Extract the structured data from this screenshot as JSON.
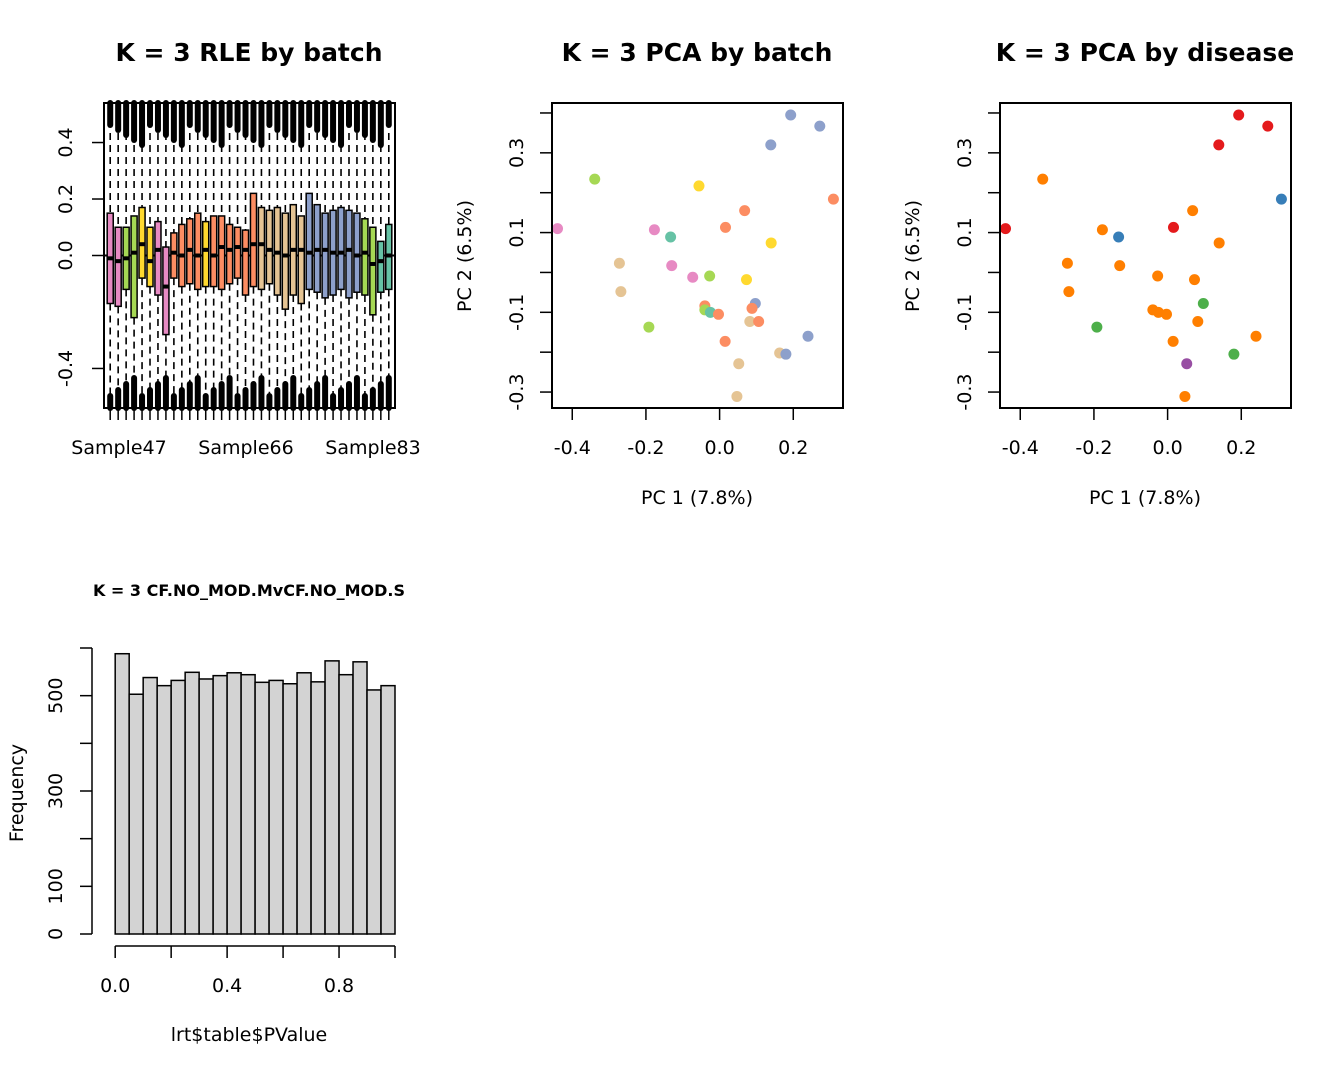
{
  "chart_data": [
    {
      "type": "boxplot",
      "title": "K = 3 RLE by batch",
      "xlabel": "",
      "ylabel": "",
      "ylim": [
        -0.54,
        0.54
      ],
      "yticks": [
        -0.4,
        0.0,
        0.2,
        0.4
      ],
      "ytick_labels": [
        "-0.4",
        "0.0",
        "0.2",
        "0.4"
      ],
      "xtick_labels": [
        "Sample47",
        "Sample66",
        "Sample83"
      ],
      "reference_line": 0,
      "boxes": [
        {
          "q1": -0.17,
          "median": -0.01,
          "q3": 0.15,
          "color": "#e78ac3"
        },
        {
          "q1": -0.18,
          "median": -0.02,
          "q3": 0.1,
          "color": "#e78ac3"
        },
        {
          "q1": -0.12,
          "median": -0.01,
          "q3": 0.1,
          "color": "#a6d854"
        },
        {
          "q1": -0.22,
          "median": 0.01,
          "q3": 0.14,
          "color": "#a6d854"
        },
        {
          "q1": -0.08,
          "median": 0.04,
          "q3": 0.17,
          "color": "#ffd92f"
        },
        {
          "q1": -0.11,
          "median": -0.02,
          "q3": 0.1,
          "color": "#ffd92f"
        },
        {
          "q1": -0.14,
          "median": 0.02,
          "q3": 0.12,
          "color": "#e78ac3"
        },
        {
          "q1": -0.28,
          "median": -0.11,
          "q3": 0.03,
          "color": "#e78ac3"
        },
        {
          "q1": -0.08,
          "median": 0.01,
          "q3": 0.08,
          "color": "#fc8d62"
        },
        {
          "q1": -0.11,
          "median": 0.0,
          "q3": 0.11,
          "color": "#fc8d62"
        },
        {
          "q1": -0.1,
          "median": 0.02,
          "q3": 0.13,
          "color": "#fc8d62"
        },
        {
          "q1": -0.12,
          "median": 0.0,
          "q3": 0.15,
          "color": "#fc8d62"
        },
        {
          "q1": -0.11,
          "median": 0.02,
          "q3": 0.12,
          "color": "#ffd92f"
        },
        {
          "q1": -0.11,
          "median": 0.0,
          "q3": 0.14,
          "color": "#fc8d62"
        },
        {
          "q1": -0.12,
          "median": 0.03,
          "q3": 0.14,
          "color": "#fc8d62"
        },
        {
          "q1": -0.1,
          "median": 0.02,
          "q3": 0.11,
          "color": "#fc8d62"
        },
        {
          "q1": -0.08,
          "median": 0.03,
          "q3": 0.1,
          "color": "#fc8d62"
        },
        {
          "q1": -0.14,
          "median": 0.02,
          "q3": 0.09,
          "color": "#fc8d62"
        },
        {
          "q1": -0.11,
          "median": 0.04,
          "q3": 0.22,
          "color": "#fc8d62"
        },
        {
          "q1": -0.12,
          "median": 0.04,
          "q3": 0.17,
          "color": "#e5c494"
        },
        {
          "q1": -0.1,
          "median": 0.02,
          "q3": 0.16,
          "color": "#e5c494"
        },
        {
          "q1": -0.14,
          "median": 0.01,
          "q3": 0.17,
          "color": "#e5c494"
        },
        {
          "q1": -0.19,
          "median": 0.0,
          "q3": 0.15,
          "color": "#e5c494"
        },
        {
          "q1": -0.14,
          "median": 0.02,
          "q3": 0.18,
          "color": "#e5c494"
        },
        {
          "q1": -0.17,
          "median": 0.02,
          "q3": 0.14,
          "color": "#e5c494"
        },
        {
          "q1": -0.12,
          "median": 0.01,
          "q3": 0.22,
          "color": "#8da0cb"
        },
        {
          "q1": -0.13,
          "median": 0.02,
          "q3": 0.18,
          "color": "#8da0cb"
        },
        {
          "q1": -0.15,
          "median": 0.02,
          "q3": 0.15,
          "color": "#8da0cb"
        },
        {
          "q1": -0.14,
          "median": 0.01,
          "q3": 0.16,
          "color": "#8da0cb"
        },
        {
          "q1": -0.12,
          "median": 0.01,
          "q3": 0.17,
          "color": "#8da0cb"
        },
        {
          "q1": -0.15,
          "median": 0.02,
          "q3": 0.16,
          "color": "#8da0cb"
        },
        {
          "q1": -0.13,
          "median": 0.0,
          "q3": 0.15,
          "color": "#8da0cb"
        },
        {
          "q1": -0.14,
          "median": 0.01,
          "q3": 0.13,
          "color": "#a6d854"
        },
        {
          "q1": -0.21,
          "median": -0.03,
          "q3": 0.1,
          "color": "#a6d854"
        },
        {
          "q1": -0.13,
          "median": -0.02,
          "q3": 0.05,
          "color": "#66c2a5"
        },
        {
          "q1": -0.12,
          "median": 0.0,
          "q3": 0.11,
          "color": "#66c2a5"
        }
      ]
    },
    {
      "type": "scatter",
      "title": "K = 3 PCA by batch",
      "xlabel": "PC 1 (7.8%)",
      "ylabel": "PC 2 (6.5%)",
      "xlim": [
        -0.455,
        0.335
      ],
      "ylim": [
        -0.34,
        0.425
      ],
      "xticks": [
        -0.4,
        -0.2,
        0.0,
        0.2
      ],
      "xtick_labels": [
        "-0.4",
        "-0.2",
        "0.0",
        "0.2"
      ],
      "yticks": [
        -0.3,
        -0.2,
        -0.1,
        0.0,
        0.1,
        0.2,
        0.3,
        0.4
      ],
      "ytick_labels": [
        "-0.3",
        "",
        "-0.1",
        "",
        "0.1",
        "",
        "0.3",
        ""
      ],
      "points": [
        {
          "x": 0.193,
          "y": 0.395,
          "color": "#8da0cb"
        },
        {
          "x": 0.272,
          "y": 0.367,
          "color": "#8da0cb"
        },
        {
          "x": 0.139,
          "y": 0.32,
          "color": "#8da0cb"
        },
        {
          "x": -0.339,
          "y": 0.234,
          "color": "#a6d854"
        },
        {
          "x": -0.056,
          "y": 0.217,
          "color": "#ffd92f"
        },
        {
          "x": 0.309,
          "y": 0.184,
          "color": "#fc8d62"
        },
        {
          "x": 0.068,
          "y": 0.155,
          "color": "#fc8d62"
        },
        {
          "x": 0.016,
          "y": 0.113,
          "color": "#fc8d62"
        },
        {
          "x": -0.44,
          "y": 0.11,
          "color": "#e78ac3"
        },
        {
          "x": -0.177,
          "y": 0.107,
          "color": "#e78ac3"
        },
        {
          "x": -0.133,
          "y": 0.089,
          "color": "#66c2a5"
        },
        {
          "x": 0.14,
          "y": 0.074,
          "color": "#ffd92f"
        },
        {
          "x": -0.272,
          "y": 0.023,
          "color": "#e5c494"
        },
        {
          "x": -0.13,
          "y": 0.017,
          "color": "#e78ac3"
        },
        {
          "x": -0.073,
          "y": -0.012,
          "color": "#e78ac3"
        },
        {
          "x": -0.027,
          "y": -0.009,
          "color": "#a6d854"
        },
        {
          "x": 0.073,
          "y": -0.018,
          "color": "#ffd92f"
        },
        {
          "x": -0.268,
          "y": -0.048,
          "color": "#e5c494"
        },
        {
          "x": 0.097,
          "y": -0.078,
          "color": "#8da0cb"
        },
        {
          "x": -0.04,
          "y": -0.084,
          "color": "#fc8d62"
        },
        {
          "x": 0.088,
          "y": -0.09,
          "color": "#fc8d62"
        },
        {
          "x": -0.04,
          "y": -0.094,
          "color": "#a6d854"
        },
        {
          "x": -0.025,
          "y": -0.1,
          "color": "#66c2a5"
        },
        {
          "x": -0.003,
          "y": -0.105,
          "color": "#fc8d62"
        },
        {
          "x": 0.082,
          "y": -0.123,
          "color": "#e5c494"
        },
        {
          "x": 0.106,
          "y": -0.123,
          "color": "#fc8d62"
        },
        {
          "x": -0.192,
          "y": -0.137,
          "color": "#a6d854"
        },
        {
          "x": 0.24,
          "y": -0.16,
          "color": "#8da0cb"
        },
        {
          "x": 0.015,
          "y": -0.173,
          "color": "#fc8d62"
        },
        {
          "x": 0.163,
          "y": -0.202,
          "color": "#e5c494"
        },
        {
          "x": 0.18,
          "y": -0.205,
          "color": "#8da0cb"
        },
        {
          "x": 0.052,
          "y": -0.229,
          "color": "#e5c494"
        },
        {
          "x": 0.047,
          "y": -0.311,
          "color": "#e5c494"
        }
      ]
    },
    {
      "type": "scatter",
      "title": "K = 3 PCA by disease",
      "xlabel": "PC 1 (7.8%)",
      "ylabel": "PC 2 (6.5%)",
      "xlim": [
        -0.455,
        0.335
      ],
      "ylim": [
        -0.34,
        0.425
      ],
      "xticks": [
        -0.4,
        -0.2,
        0.0,
        0.2
      ],
      "xtick_labels": [
        "-0.4",
        "-0.2",
        "0.0",
        "0.2"
      ],
      "yticks": [
        -0.3,
        -0.2,
        -0.1,
        0.0,
        0.1,
        0.2,
        0.3,
        0.4
      ],
      "ytick_labels": [
        "-0.3",
        "",
        "-0.1",
        "",
        "0.1",
        "",
        "0.3",
        ""
      ],
      "points": [
        {
          "x": 0.193,
          "y": 0.395,
          "color": "#e41a1c"
        },
        {
          "x": 0.272,
          "y": 0.367,
          "color": "#e41a1c"
        },
        {
          "x": 0.139,
          "y": 0.32,
          "color": "#e41a1c"
        },
        {
          "x": -0.339,
          "y": 0.234,
          "color": "#ff7f00"
        },
        {
          "x": 0.309,
          "y": 0.184,
          "color": "#377eb8"
        },
        {
          "x": 0.068,
          "y": 0.155,
          "color": "#ff7f00"
        },
        {
          "x": 0.016,
          "y": 0.113,
          "color": "#e41a1c"
        },
        {
          "x": -0.44,
          "y": 0.11,
          "color": "#e41a1c"
        },
        {
          "x": -0.177,
          "y": 0.107,
          "color": "#ff7f00"
        },
        {
          "x": -0.133,
          "y": 0.089,
          "color": "#377eb8"
        },
        {
          "x": 0.14,
          "y": 0.074,
          "color": "#ff7f00"
        },
        {
          "x": -0.272,
          "y": 0.023,
          "color": "#ff7f00"
        },
        {
          "x": -0.13,
          "y": 0.017,
          "color": "#ff7f00"
        },
        {
          "x": -0.027,
          "y": -0.009,
          "color": "#ff7f00"
        },
        {
          "x": 0.073,
          "y": -0.018,
          "color": "#ff7f00"
        },
        {
          "x": -0.268,
          "y": -0.048,
          "color": "#ff7f00"
        },
        {
          "x": 0.097,
          "y": -0.078,
          "color": "#4daf4a"
        },
        {
          "x": -0.04,
          "y": -0.094,
          "color": "#ff7f00"
        },
        {
          "x": -0.025,
          "y": -0.1,
          "color": "#ff7f00"
        },
        {
          "x": -0.003,
          "y": -0.105,
          "color": "#ff7f00"
        },
        {
          "x": 0.082,
          "y": -0.123,
          "color": "#ff7f00"
        },
        {
          "x": -0.192,
          "y": -0.137,
          "color": "#4daf4a"
        },
        {
          "x": 0.24,
          "y": -0.16,
          "color": "#ff7f00"
        },
        {
          "x": 0.015,
          "y": -0.173,
          "color": "#ff7f00"
        },
        {
          "x": 0.18,
          "y": -0.205,
          "color": "#4daf4a"
        },
        {
          "x": 0.052,
          "y": -0.229,
          "color": "#984ea3"
        },
        {
          "x": 0.047,
          "y": -0.311,
          "color": "#ff7f00"
        }
      ]
    },
    {
      "type": "histogram",
      "title": "K = 3 CF.NO_MOD.MvCF.NO_MOD.S",
      "xlabel": "lrt$table$PValue",
      "ylabel": "Frequency",
      "xlim": [
        -0.04,
        1.0
      ],
      "ylim": [
        0,
        600
      ],
      "xticks": [
        0.0,
        0.2,
        0.4,
        0.6,
        0.8,
        1.0
      ],
      "xtick_labels": [
        "0.0",
        "",
        "0.4",
        "",
        "0.8",
        ""
      ],
      "yticks": [
        0,
        100,
        200,
        300,
        400,
        500,
        600
      ],
      "ytick_labels": [
        "0",
        "100",
        "",
        "300",
        "",
        "500",
        ""
      ],
      "bin_width": 0.05,
      "bar_color": "#d3d3d3",
      "bins": [
        0.0,
        0.05,
        0.1,
        0.15,
        0.2,
        0.25,
        0.3,
        0.35,
        0.4,
        0.45,
        0.5,
        0.55,
        0.6,
        0.65,
        0.7,
        0.75,
        0.8,
        0.85,
        0.9,
        0.95
      ],
      "counts": [
        588,
        503,
        538,
        521,
        532,
        549,
        535,
        542,
        548,
        544,
        528,
        532,
        525,
        548,
        529,
        573,
        544,
        571,
        512,
        521
      ]
    }
  ]
}
